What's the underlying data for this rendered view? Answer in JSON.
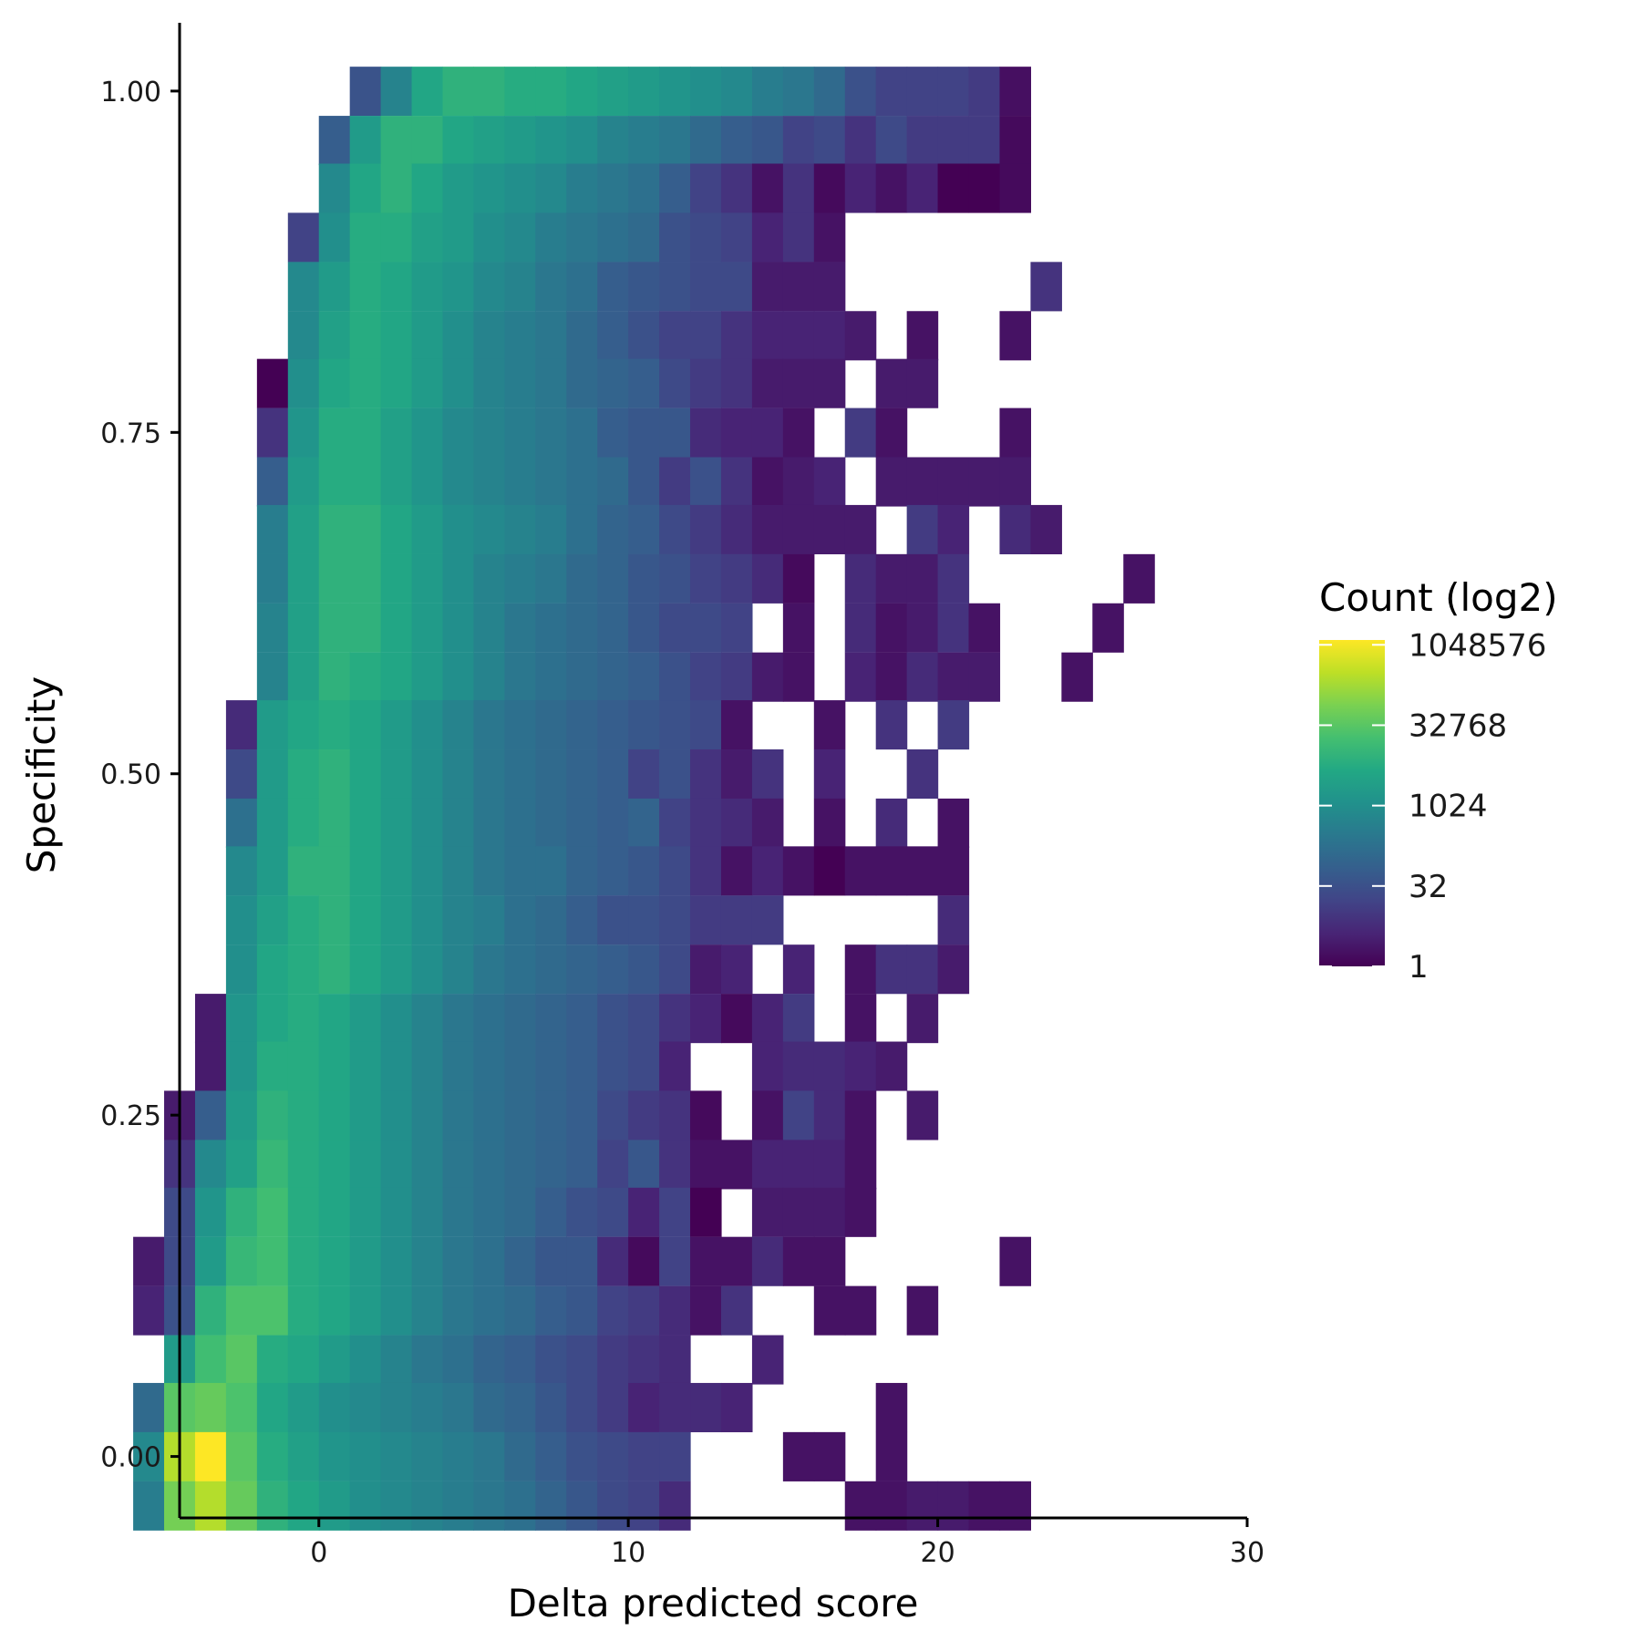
{
  "chart_data": {
    "type": "heatmap",
    "title": "",
    "xlabel": "Delta predicted score",
    "ylabel": "Specificity",
    "xlim": [
      -4.5,
      30
    ],
    "ylim": [
      -0.045,
      1.05
    ],
    "x_ticks": [
      0,
      10,
      20,
      30
    ],
    "x_tick_labels": [
      "0",
      "10",
      "20",
      "30"
    ],
    "y_ticks": [
      0,
      0.25,
      0.5,
      0.75,
      1.0
    ],
    "y_tick_labels": [
      "0.00",
      "0.25",
      "0.50",
      "0.75",
      "1.00"
    ],
    "grid": false,
    "colormap": "viridis",
    "bin_width_x": 1.0,
    "bin_height_y": 0.0357,
    "x_first_bin_center": -2.5,
    "color_value": "log2 count",
    "legend": {
      "title": "Count (log2)",
      "placement": "right",
      "labels": [
        "1048576",
        "32768",
        "1024",
        "32",
        "1"
      ],
      "values_log2": [
        20,
        15,
        10,
        5,
        0
      ],
      "range_log2": [
        0,
        20.3
      ]
    },
    "rows": [
      {
        "specificity": 1.0,
        "x_start": 1,
        "log2_counts": [
          5.2,
          9,
          12,
          13,
          13,
          12.5,
          12.5,
          12,
          11.5,
          11,
          10.5,
          10,
          9.5,
          8.5,
          8,
          7,
          5,
          4,
          4,
          4,
          3.5,
          0.8
        ]
      },
      {
        "specificity": 0.964,
        "x_start": 0,
        "log2_counts": [
          6,
          11,
          13,
          13,
          12,
          11.5,
          11,
          10.5,
          10,
          9,
          8.5,
          8,
          7,
          6,
          5.5,
          4,
          4.5,
          3,
          4.5,
          3.5,
          3.5,
          3.5,
          0.5
        ]
      },
      {
        "specificity": 0.929,
        "x_start": 0,
        "log2_counts": [
          9.5,
          12,
          13,
          12,
          11,
          10.5,
          10,
          9.5,
          8.5,
          8,
          7.5,
          6,
          4,
          3,
          1,
          3,
          0.5,
          2,
          1,
          2,
          0,
          0,
          0.5
        ]
      },
      {
        "specificity": 0.893,
        "x_start": -1,
        "log2_counts": [
          4,
          10,
          12.5,
          12.5,
          11.5,
          11,
          10,
          9.5,
          8.5,
          8,
          7.5,
          7,
          5,
          4.5,
          4,
          2,
          3,
          1
        ]
      },
      {
        "specificity": 0.857,
        "x_start": -1,
        "log2_counts": [
          9.5,
          11,
          12.5,
          12,
          11,
          10.5,
          9.5,
          9,
          8,
          7.5,
          6,
          5.5,
          5,
          4.5,
          4.5,
          1.5,
          1.5,
          1.5,
          null,
          null,
          null,
          null,
          null,
          null,
          3
        ]
      },
      {
        "specificity": 0.821,
        "x_start": -1,
        "log2_counts": [
          9.5,
          11.5,
          12.5,
          12,
          11,
          10,
          9,
          8.5,
          8,
          7,
          6,
          5,
          4,
          4,
          3,
          2,
          2,
          2,
          1.5,
          null,
          1,
          null,
          null,
          1
        ]
      },
      {
        "specificity": 0.786,
        "x_start": -2,
        "log2_counts": [
          0,
          10,
          12,
          12.5,
          12,
          11,
          10,
          9,
          8.5,
          8,
          7,
          6.5,
          6,
          4.5,
          3.5,
          3,
          1.5,
          1.5,
          1.5,
          null,
          1.5,
          1.5
        ]
      },
      {
        "specificity": 0.75,
        "x_start": -2,
        "log2_counts": [
          3,
          10.5,
          12.5,
          12.5,
          11.5,
          10.5,
          9.5,
          9,
          8.5,
          8,
          7.5,
          6,
          5.5,
          5.5,
          2.5,
          2,
          2,
          1,
          null,
          3.5,
          1,
          null,
          null,
          null,
          1
        ]
      },
      {
        "specificity": 0.714,
        "x_start": -2,
        "log2_counts": [
          6,
          11,
          12.5,
          12.5,
          11.5,
          10.5,
          9.5,
          9,
          8.5,
          8,
          7.5,
          7,
          5.5,
          3.5,
          5,
          3,
          1,
          1.5,
          2,
          null,
          1.5,
          1.5,
          1.5,
          1.5,
          1.5
        ]
      },
      {
        "specificity": 0.679,
        "x_start": -2,
        "log2_counts": [
          8.5,
          11.5,
          13,
          13,
          12,
          11,
          10,
          9.5,
          9,
          8.5,
          7.5,
          6.5,
          6,
          4.5,
          3.5,
          2.5,
          1.5,
          1.5,
          1.5,
          1.5,
          null,
          3.5,
          2,
          null,
          2.5,
          1.5
        ]
      },
      {
        "specificity": 0.643,
        "x_start": -2,
        "log2_counts": [
          8.5,
          11.5,
          13,
          13,
          12,
          11,
          10,
          9,
          8.5,
          8,
          7,
          6.5,
          5.5,
          5,
          4,
          3.5,
          2.5,
          0.5,
          null,
          2.5,
          1.5,
          1.5,
          3,
          null,
          null,
          null,
          null,
          null,
          1
        ]
      },
      {
        "specificity": 0.607,
        "x_start": -2,
        "log2_counts": [
          9,
          11.5,
          13,
          13,
          12,
          11,
          10,
          9,
          8,
          7.5,
          7,
          6.5,
          5.5,
          4.5,
          4.5,
          4,
          null,
          1,
          null,
          2.5,
          1,
          1.5,
          3,
          1,
          null,
          null,
          null,
          1
        ]
      },
      {
        "specificity": 0.571,
        "x_start": -2,
        "log2_counts": [
          9,
          11.5,
          13,
          12.5,
          12,
          11,
          10,
          9,
          8,
          7.5,
          7,
          6.5,
          6,
          5,
          4,
          3.5,
          1.5,
          1,
          null,
          2,
          1,
          2.5,
          1.5,
          1.5,
          null,
          null,
          1
        ]
      },
      {
        "specificity": 0.536,
        "x_start": -3,
        "log2_counts": [
          2.5,
          11,
          12,
          12.5,
          12,
          11,
          10,
          9,
          8,
          7.5,
          7,
          6.5,
          6,
          5.5,
          5,
          4.5,
          1,
          null,
          null,
          1,
          null,
          3,
          null,
          3.5
        ]
      },
      {
        "specificity": 0.5,
        "x_start": -3,
        "log2_counts": [
          4.5,
          11,
          12.5,
          13,
          12,
          11,
          10,
          9,
          8,
          7.5,
          7,
          6.5,
          6,
          4,
          5,
          3,
          1.5,
          3,
          null,
          2,
          null,
          null,
          3
        ]
      },
      {
        "specificity": 0.464,
        "x_start": -3,
        "log2_counts": [
          7.5,
          11,
          12.5,
          13,
          12,
          11,
          10,
          9,
          8,
          7.5,
          7,
          6.5,
          6,
          6.5,
          4,
          3,
          2.5,
          1.5,
          null,
          1,
          null,
          2.5,
          null,
          1
        ]
      },
      {
        "specificity": 0.429,
        "x_start": -3,
        "log2_counts": [
          9.5,
          11,
          13,
          13,
          12,
          11,
          10,
          9,
          8,
          7.5,
          7.5,
          6.5,
          6,
          5.5,
          4.5,
          3,
          1,
          2,
          1,
          0,
          1,
          1,
          1,
          1
        ]
      },
      {
        "specificity": 0.393,
        "x_start": -3,
        "log2_counts": [
          10,
          11.5,
          12.5,
          13,
          12,
          11,
          10,
          9,
          8.5,
          7.5,
          7,
          6,
          5,
          5,
          4.5,
          3.5,
          3.5,
          3.5,
          null,
          null,
          null,
          null,
          null,
          2.5
        ]
      },
      {
        "specificity": 0.357,
        "x_start": -3,
        "log2_counts": [
          10,
          12,
          12.5,
          13,
          12,
          11,
          10,
          9,
          8,
          7.5,
          7,
          6.5,
          6,
          5.5,
          4.5,
          1.5,
          2,
          null,
          2,
          null,
          1,
          3,
          3,
          1.5
        ]
      },
      {
        "specificity": 0.321,
        "x_start": -4,
        "log2_counts": [
          1.5,
          10.5,
          12,
          12.5,
          12,
          11,
          10,
          9,
          8,
          7.5,
          7,
          6.5,
          6,
          5,
          4.5,
          3,
          2,
          0.5,
          2,
          3.5,
          null,
          1,
          null,
          1.5
        ]
      },
      {
        "specificity": 0.286,
        "x_start": -4,
        "log2_counts": [
          1.5,
          10.5,
          12.5,
          12.5,
          12,
          11,
          10,
          9,
          8,
          7.5,
          7,
          6.5,
          6,
          5,
          4.5,
          2,
          null,
          null,
          2,
          2.5,
          2.5,
          2,
          1.5
        ]
      },
      {
        "specificity": 0.25,
        "x_start": -5,
        "log2_counts": [
          1.5,
          6,
          11,
          13,
          12.5,
          12,
          11,
          10,
          9,
          8,
          7.5,
          7,
          6.5,
          6,
          4.5,
          3.5,
          3,
          0.5,
          null,
          1,
          4,
          2.5,
          1,
          null,
          1.5
        ]
      },
      {
        "specificity": 0.214,
        "x_start": -5,
        "log2_counts": [
          3,
          9.5,
          11.5,
          13.5,
          12.5,
          12,
          11,
          10,
          9,
          8,
          7.5,
          7,
          6.5,
          6,
          4,
          5.5,
          3,
          1,
          1,
          2,
          2,
          2,
          1
        ]
      },
      {
        "specificity": 0.179,
        "x_start": -5,
        "log2_counts": [
          4.5,
          10.5,
          13,
          14,
          12.5,
          12,
          11,
          10,
          9,
          8,
          7.5,
          7,
          6,
          5,
          4.5,
          2,
          4,
          0,
          null,
          1.5,
          1.5,
          1.5,
          1
        ]
      },
      {
        "specificity": 0.143,
        "x_start": -6,
        "log2_counts": [
          1.5,
          4.5,
          11,
          13.5,
          14,
          12.5,
          12,
          11,
          10,
          9,
          8,
          7.5,
          6.5,
          5.5,
          5.5,
          2.5,
          0.5,
          4,
          1,
          1,
          2.5,
          1,
          1,
          null,
          null,
          null,
          null,
          null,
          1
        ]
      },
      {
        "specificity": 0.107,
        "x_start": -6,
        "log2_counts": [
          2,
          5,
          13,
          14.5,
          14.5,
          12.5,
          12,
          11,
          10,
          9,
          8,
          7.5,
          7,
          6,
          5.5,
          4,
          3.5,
          2.5,
          1,
          3,
          null,
          null,
          1,
          1,
          null,
          1
        ]
      },
      {
        "specificity": 0.071,
        "x_start": -5,
        "log2_counts": [
          11,
          14,
          15,
          12.5,
          12,
          11,
          10,
          9,
          8,
          7.5,
          6.5,
          6,
          5,
          4.5,
          3.5,
          3,
          2.5,
          null,
          null,
          2
        ]
      },
      {
        "specificity": 0.036,
        "x_start": -6,
        "log2_counts": [
          7,
          15,
          15.5,
          14.5,
          12,
          11,
          10,
          9.5,
          9,
          8.5,
          8,
          7,
          6.5,
          5.5,
          4.5,
          3.5,
          2,
          2.5,
          2.5,
          2,
          null,
          null,
          null,
          null,
          1
        ]
      },
      {
        "specificity": 0.0,
        "x_start": -6,
        "log2_counts": [
          9.5,
          18,
          20.3,
          15,
          12.5,
          11.5,
          10.5,
          10,
          9.5,
          9,
          8.5,
          8,
          7,
          6,
          5,
          4.5,
          4,
          4,
          null,
          null,
          null,
          1,
          1,
          null,
          1
        ]
      },
      {
        "specificity": -0.036,
        "x_start": -6,
        "log2_counts": [
          8.5,
          16,
          18,
          15.5,
          13,
          12,
          11,
          10,
          9.5,
          9,
          8.5,
          8,
          7.5,
          6.5,
          5.5,
          4.5,
          4,
          2.5,
          null,
          null,
          null,
          null,
          null,
          1,
          1,
          1.5,
          1.5,
          1,
          1
        ]
      }
    ]
  }
}
